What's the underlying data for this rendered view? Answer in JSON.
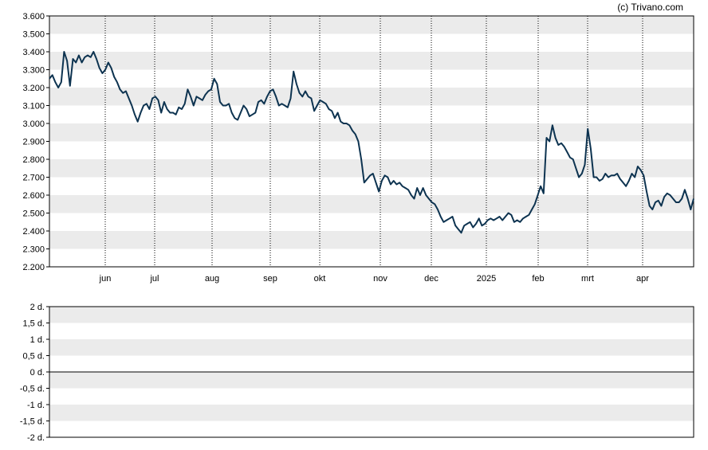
{
  "copyright": "(c) Trivano.com",
  "chart_data": [
    {
      "type": "line",
      "title": "",
      "ylim": [
        2200,
        3600
      ],
      "y_ticks": [
        "2.200",
        "2.300",
        "2.400",
        "2.500",
        "2.600",
        "2.700",
        "2.800",
        "2.900",
        "3.000",
        "3.100",
        "3.200",
        "3.300",
        "3.400",
        "3.500",
        "3.600"
      ],
      "x_ticks": [
        "jun",
        "jul",
        "aug",
        "sep",
        "okt",
        "nov",
        "dec",
        "2025",
        "feb",
        "mrt",
        "apr"
      ],
      "grid": "vertical dotted lines at month boundaries, alternating grey horizontal bands",
      "line_color": "#0d3350",
      "series": [
        {
          "values": [
            3250,
            3270,
            3230,
            3200,
            3230,
            3400,
            3350,
            3210,
            3360,
            3340,
            3380,
            3340,
            3370,
            3380,
            3370,
            3400,
            3360,
            3310,
            3280,
            3300,
            3340,
            3310,
            3260,
            3230,
            3190,
            3170,
            3180,
            3140,
            3100,
            3050,
            3010,
            3060,
            3100,
            3110,
            3080,
            3140,
            3150,
            3130,
            3060,
            3120,
            3080,
            3060,
            3060,
            3050,
            3090,
            3080,
            3110,
            3190,
            3150,
            3100,
            3150,
            3140,
            3130,
            3160,
            3180,
            3190,
            3250,
            3220,
            3120,
            3100,
            3100,
            3110,
            3060,
            3030,
            3020,
            3060,
            3100,
            3080,
            3040,
            3050,
            3060,
            3120,
            3130,
            3110,
            3150,
            3180,
            3190,
            3150,
            3100,
            3110,
            3100,
            3090,
            3140,
            3290,
            3220,
            3170,
            3150,
            3180,
            3150,
            3140,
            3070,
            3100,
            3130,
            3120,
            3110,
            3080,
            3070,
            3030,
            3060,
            3010,
            3000,
            3000,
            2990,
            2960,
            2940,
            2900,
            2800,
            2670,
            2690,
            2710,
            2720,
            2670,
            2620,
            2680,
            2710,
            2700,
            2660,
            2680,
            2660,
            2670,
            2650,
            2640,
            2630,
            2600,
            2580,
            2640,
            2600,
            2640,
            2600,
            2580,
            2560,
            2550,
            2520,
            2480,
            2450,
            2460,
            2470,
            2480,
            2430,
            2410,
            2390,
            2430,
            2440,
            2450,
            2420,
            2440,
            2470,
            2430,
            2440,
            2460,
            2470,
            2460,
            2470,
            2480,
            2460,
            2480,
            2500,
            2490,
            2450,
            2460,
            2450,
            2470,
            2480,
            2490,
            2520,
            2550,
            2600,
            2650,
            2610,
            2920,
            2900,
            2990,
            2920,
            2880,
            2890,
            2870,
            2840,
            2810,
            2800,
            2750,
            2700,
            2720,
            2770,
            2970,
            2860,
            2700,
            2700,
            2680,
            2690,
            2720,
            2700,
            2710,
            2710,
            2720,
            2690,
            2670,
            2650,
            2680,
            2720,
            2700,
            2760,
            2740,
            2710,
            2620,
            2540,
            2520,
            2560,
            2570,
            2540,
            2590,
            2610,
            2600,
            2580,
            2560,
            2560,
            2580,
            2630,
            2580,
            2520,
            2580
          ]
        }
      ]
    },
    {
      "type": "line",
      "title": "",
      "ylim": [
        -2,
        2
      ],
      "y_ticks": [
        "2 d.",
        "1,5 d.",
        "1 d.",
        "0,5 d.",
        "0 d.",
        "-0,5 d.",
        "-1 d.",
        "-1,5 d.",
        "-2 d."
      ],
      "series": []
    }
  ]
}
